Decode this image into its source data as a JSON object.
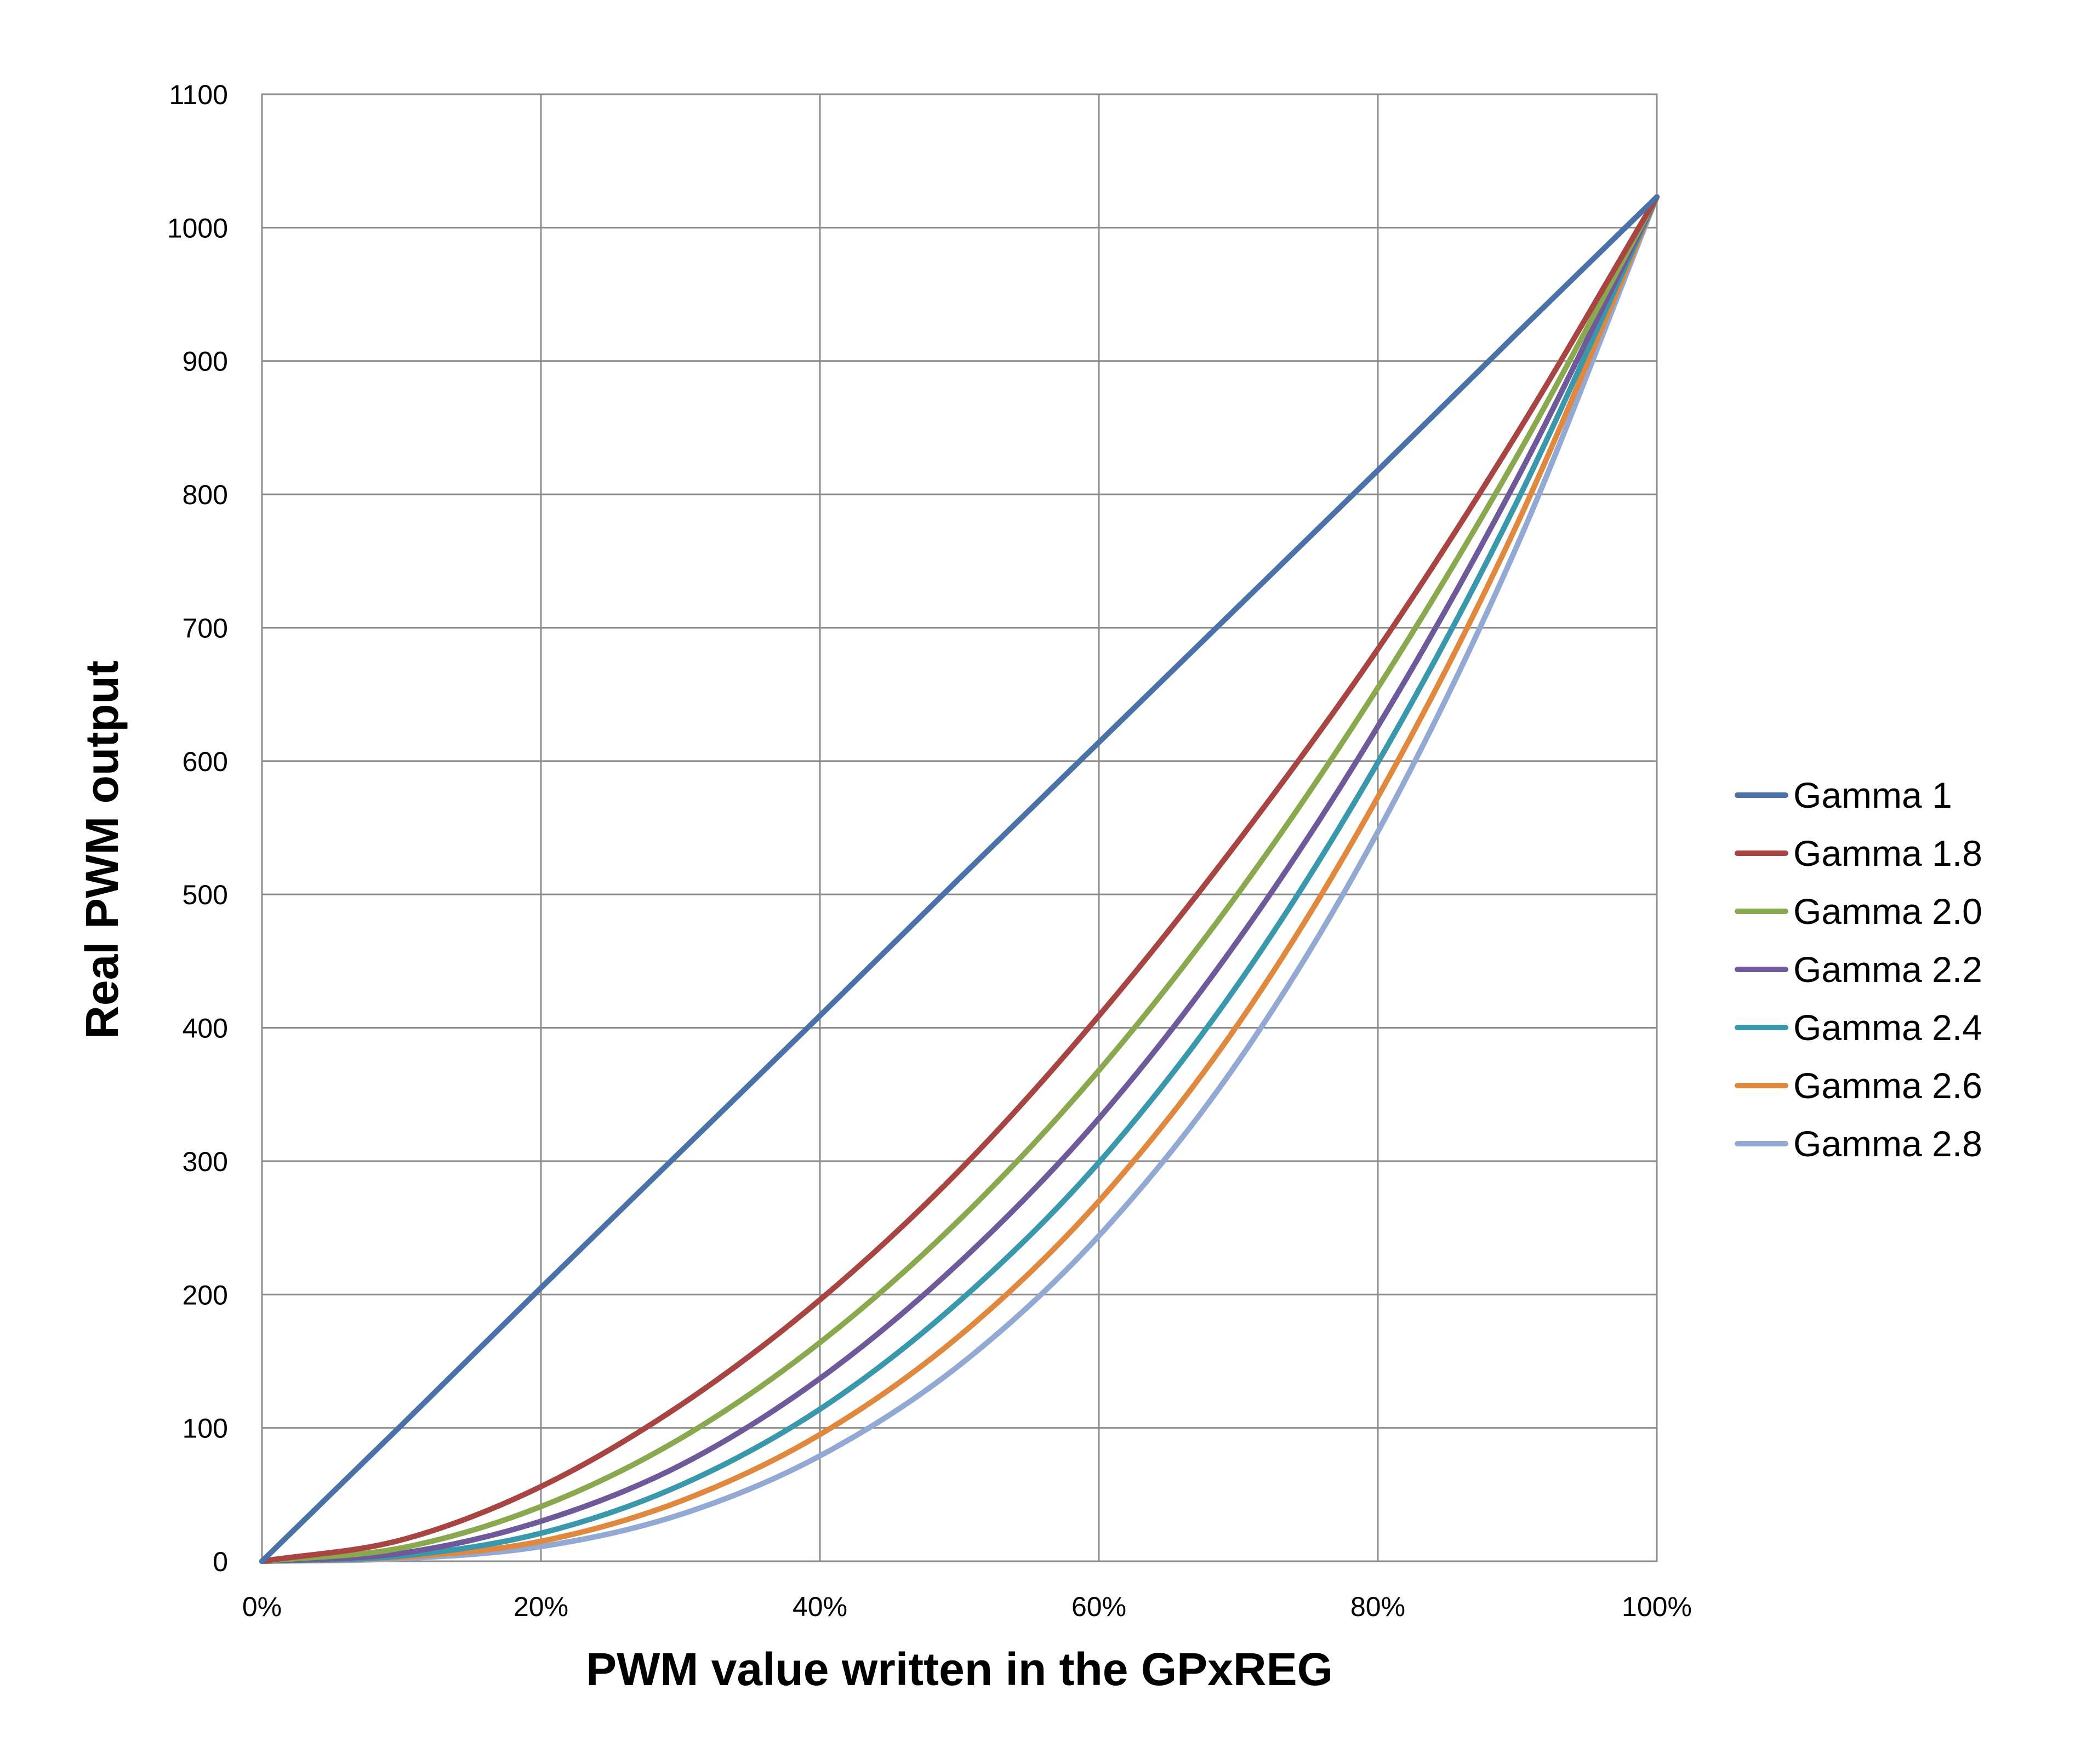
{
  "chart_data": {
    "type": "line",
    "title": "",
    "xlabel": "PWM value written in the GPxREG",
    "ylabel": "Real PWM output",
    "xlim": [
      0,
      100
    ],
    "ylim": [
      0,
      1100
    ],
    "x_ticks": [
      "0%",
      "20%",
      "40%",
      "60%",
      "80%",
      "100%"
    ],
    "y_ticks": [
      "0",
      "100",
      "200",
      "300",
      "400",
      "500",
      "600",
      "700",
      "800",
      "900",
      "1000",
      "1100"
    ],
    "grid": true,
    "legend_position": "right",
    "x": [
      0,
      10,
      20,
      30,
      40,
      50,
      60,
      70,
      80,
      90,
      100
    ],
    "series": [
      {
        "name": "Gamma 1",
        "color": "#4a72a8",
        "values": [
          0,
          102,
          205,
          307,
          409,
          512,
          614,
          716,
          818,
          921,
          1023
        ]
      },
      {
        "name": "Gamma 1.8",
        "color": "#a84442",
        "values": [
          0,
          16,
          56,
          117,
          196,
          293,
          409,
          540,
          684,
          846,
          1023
        ]
      },
      {
        "name": "Gamma 2.0",
        "color": "#8aa94e",
        "values": [
          0,
          10,
          41,
          92,
          164,
          256,
          368,
          501,
          655,
          829,
          1023
        ]
      },
      {
        "name": "Gamma 2.2",
        "color": "#6e5a9a",
        "values": [
          0,
          6,
          30,
          72,
          137,
          224,
          332,
          466,
          626,
          812,
          1023
        ]
      },
      {
        "name": "Gamma 2.4",
        "color": "#3a98ad",
        "values": [
          0,
          4,
          21,
          57,
          114,
          195,
          299,
          433,
          599,
          795,
          1023
        ]
      },
      {
        "name": "Gamma 2.6",
        "color": "#e0883e",
        "values": [
          0,
          3,
          15,
          45,
          95,
          169,
          270,
          403,
          573,
          778,
          1023
        ]
      },
      {
        "name": "Gamma 2.8",
        "color": "#92a9d4",
        "values": [
          0,
          2,
          11,
          35,
          79,
          147,
          244,
          375,
          547,
          762,
          1023
        ]
      }
    ]
  }
}
